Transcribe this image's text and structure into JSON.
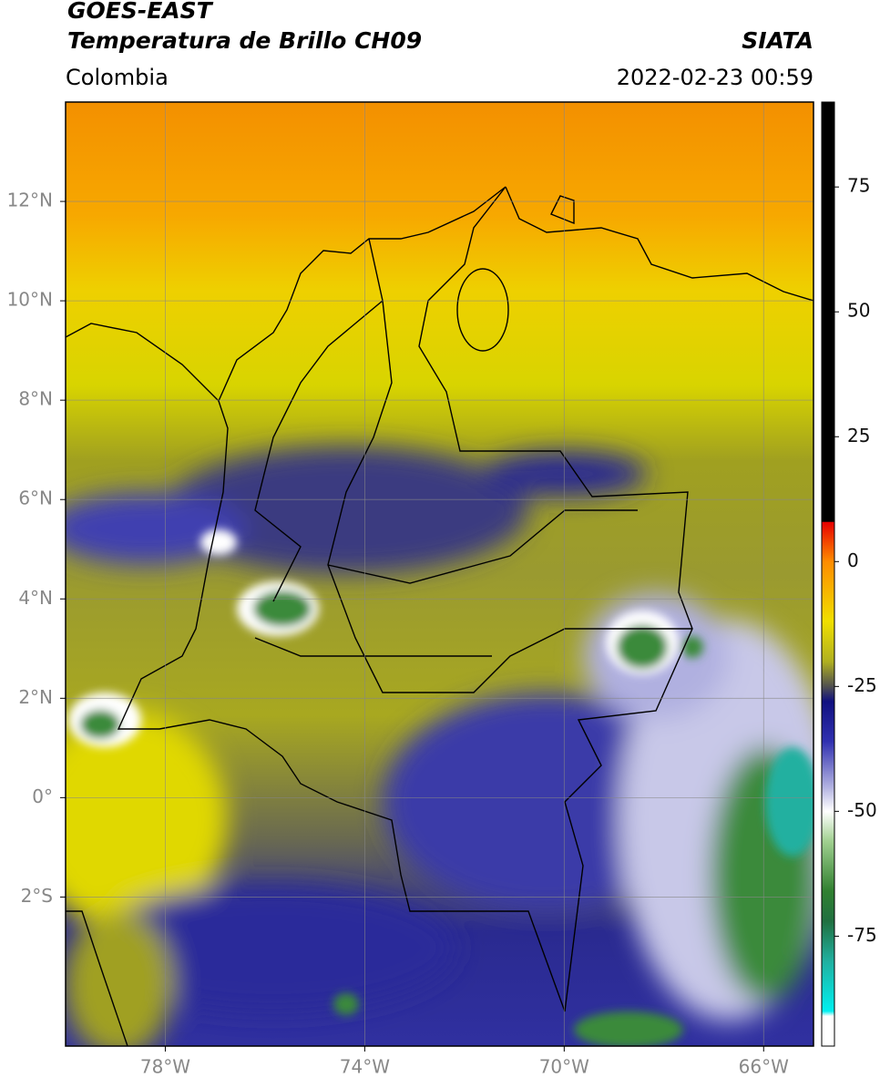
{
  "chart_data": {
    "type": "map",
    "title": "GOES-EAST",
    "subtitle": "Temperatura de Brillo CH09",
    "source": "SIATA",
    "region": "Colombia",
    "timestamp": "2022-02-23 00:59",
    "xlim": [
      -80,
      -65
    ],
    "ylim": [
      -5,
      14
    ],
    "xticks": [
      {
        "value": -78,
        "label": "78°W"
      },
      {
        "value": -74,
        "label": "74°W"
      },
      {
        "value": -70,
        "label": "70°W"
      },
      {
        "value": -66,
        "label": "66°W"
      }
    ],
    "yticks": [
      {
        "value": 12,
        "label": "12°N"
      },
      {
        "value": 10,
        "label": "10°N"
      },
      {
        "value": 8,
        "label": "8°N"
      },
      {
        "value": 6,
        "label": "6°N"
      },
      {
        "value": 4,
        "label": "4°N"
      },
      {
        "value": 2,
        "label": "2°N"
      },
      {
        "value": 0,
        "label": "0°"
      },
      {
        "value": -2,
        "label": "2°S"
      }
    ],
    "grid": true,
    "colorbar": {
      "lim": [
        -97,
        92
      ],
      "ticks": [
        75,
        50,
        25,
        0,
        -25,
        -50,
        -75
      ],
      "colormap": [
        [
          92,
          "#000000"
        ],
        [
          8,
          "#000000"
        ],
        [
          7.9,
          "#e60000"
        ],
        [
          0,
          "#ff8c00"
        ],
        [
          -12,
          "#f0e000"
        ],
        [
          -20,
          "#b0b020"
        ],
        [
          -25,
          "#505050"
        ],
        [
          -28,
          "#101080"
        ],
        [
          -36,
          "#3030b0"
        ],
        [
          -45,
          "#b0b0e0"
        ],
        [
          -50,
          "#ffffff"
        ],
        [
          -56,
          "#a0d090"
        ],
        [
          -66,
          "#308030"
        ],
        [
          -72,
          "#207040"
        ],
        [
          -80,
          "#20b0a0"
        ],
        [
          -90,
          "#00f0f0"
        ],
        [
          -91,
          "#ffffff"
        ],
        [
          -97,
          "#ffffff"
        ]
      ]
    }
  }
}
